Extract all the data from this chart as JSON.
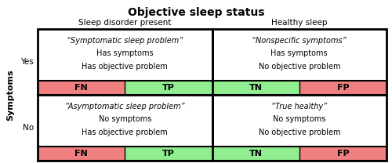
{
  "title": "Objective sleep status",
  "col_headers": [
    "Sleep disorder present",
    "Healthy sleep"
  ],
  "row_headers": [
    "Yes",
    "No"
  ],
  "row_label": "Symptoms",
  "cell_texts": [
    [
      [
        "“Symptomatic sleep problem”",
        "Has symptoms",
        "Has objective problem"
      ],
      [
        "“Nonspecific symptoms”",
        "Has symptoms",
        "No objective problem"
      ]
    ],
    [
      [
        "“Asymptomatic sleep problem”",
        "No symptoms",
        "Has objective problem"
      ],
      [
        "“True healthy”",
        "No symptoms",
        "No objective problem"
      ]
    ]
  ],
  "label_rows": [
    [
      "FN",
      "TP",
      "TN",
      "FP"
    ],
    [
      "FN",
      "TP",
      "TN",
      "FP"
    ]
  ],
  "label_colors": {
    "FN": "#f08080",
    "TP": "#90ee90",
    "TN": "#90ee90",
    "FP": "#f08080"
  },
  "bg_color": "#ffffff",
  "border_color": "#000000",
  "title_fontsize": 10,
  "header_fontsize": 7.5,
  "cell_fontsize": 7,
  "label_fontsize": 8
}
